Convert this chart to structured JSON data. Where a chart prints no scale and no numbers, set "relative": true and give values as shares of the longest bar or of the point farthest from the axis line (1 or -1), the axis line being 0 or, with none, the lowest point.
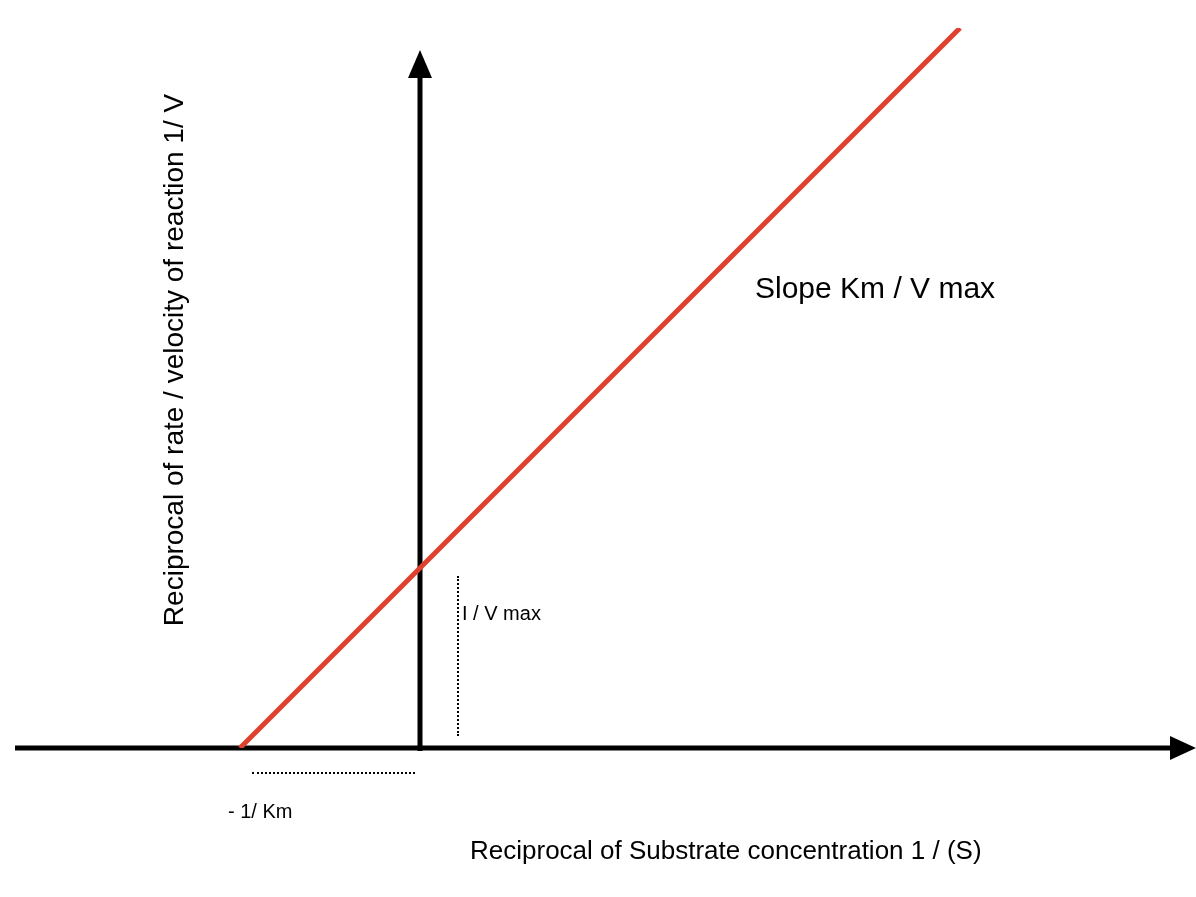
{
  "chart_data": {
    "type": "line",
    "relative": true,
    "xlabel": "Reciprocal of Substrate concentration 1 / (S)",
    "ylabel": "Reciprocal of rate / velocity of reaction 1/ V",
    "categories": [
      null,
      null,
      null,
      null,
      null
    ],
    "series": [
      {
        "color": "#e0402e",
        "values": [
          0,
          0.25,
          0.5,
          0.75,
          1
        ]
      }
    ],
    "annotations": [
      "Slope Km / V max",
      "I / V max",
      "- 1/ Km"
    ],
    "grid": false,
    "legend": false,
    "marker": "none"
  }
}
